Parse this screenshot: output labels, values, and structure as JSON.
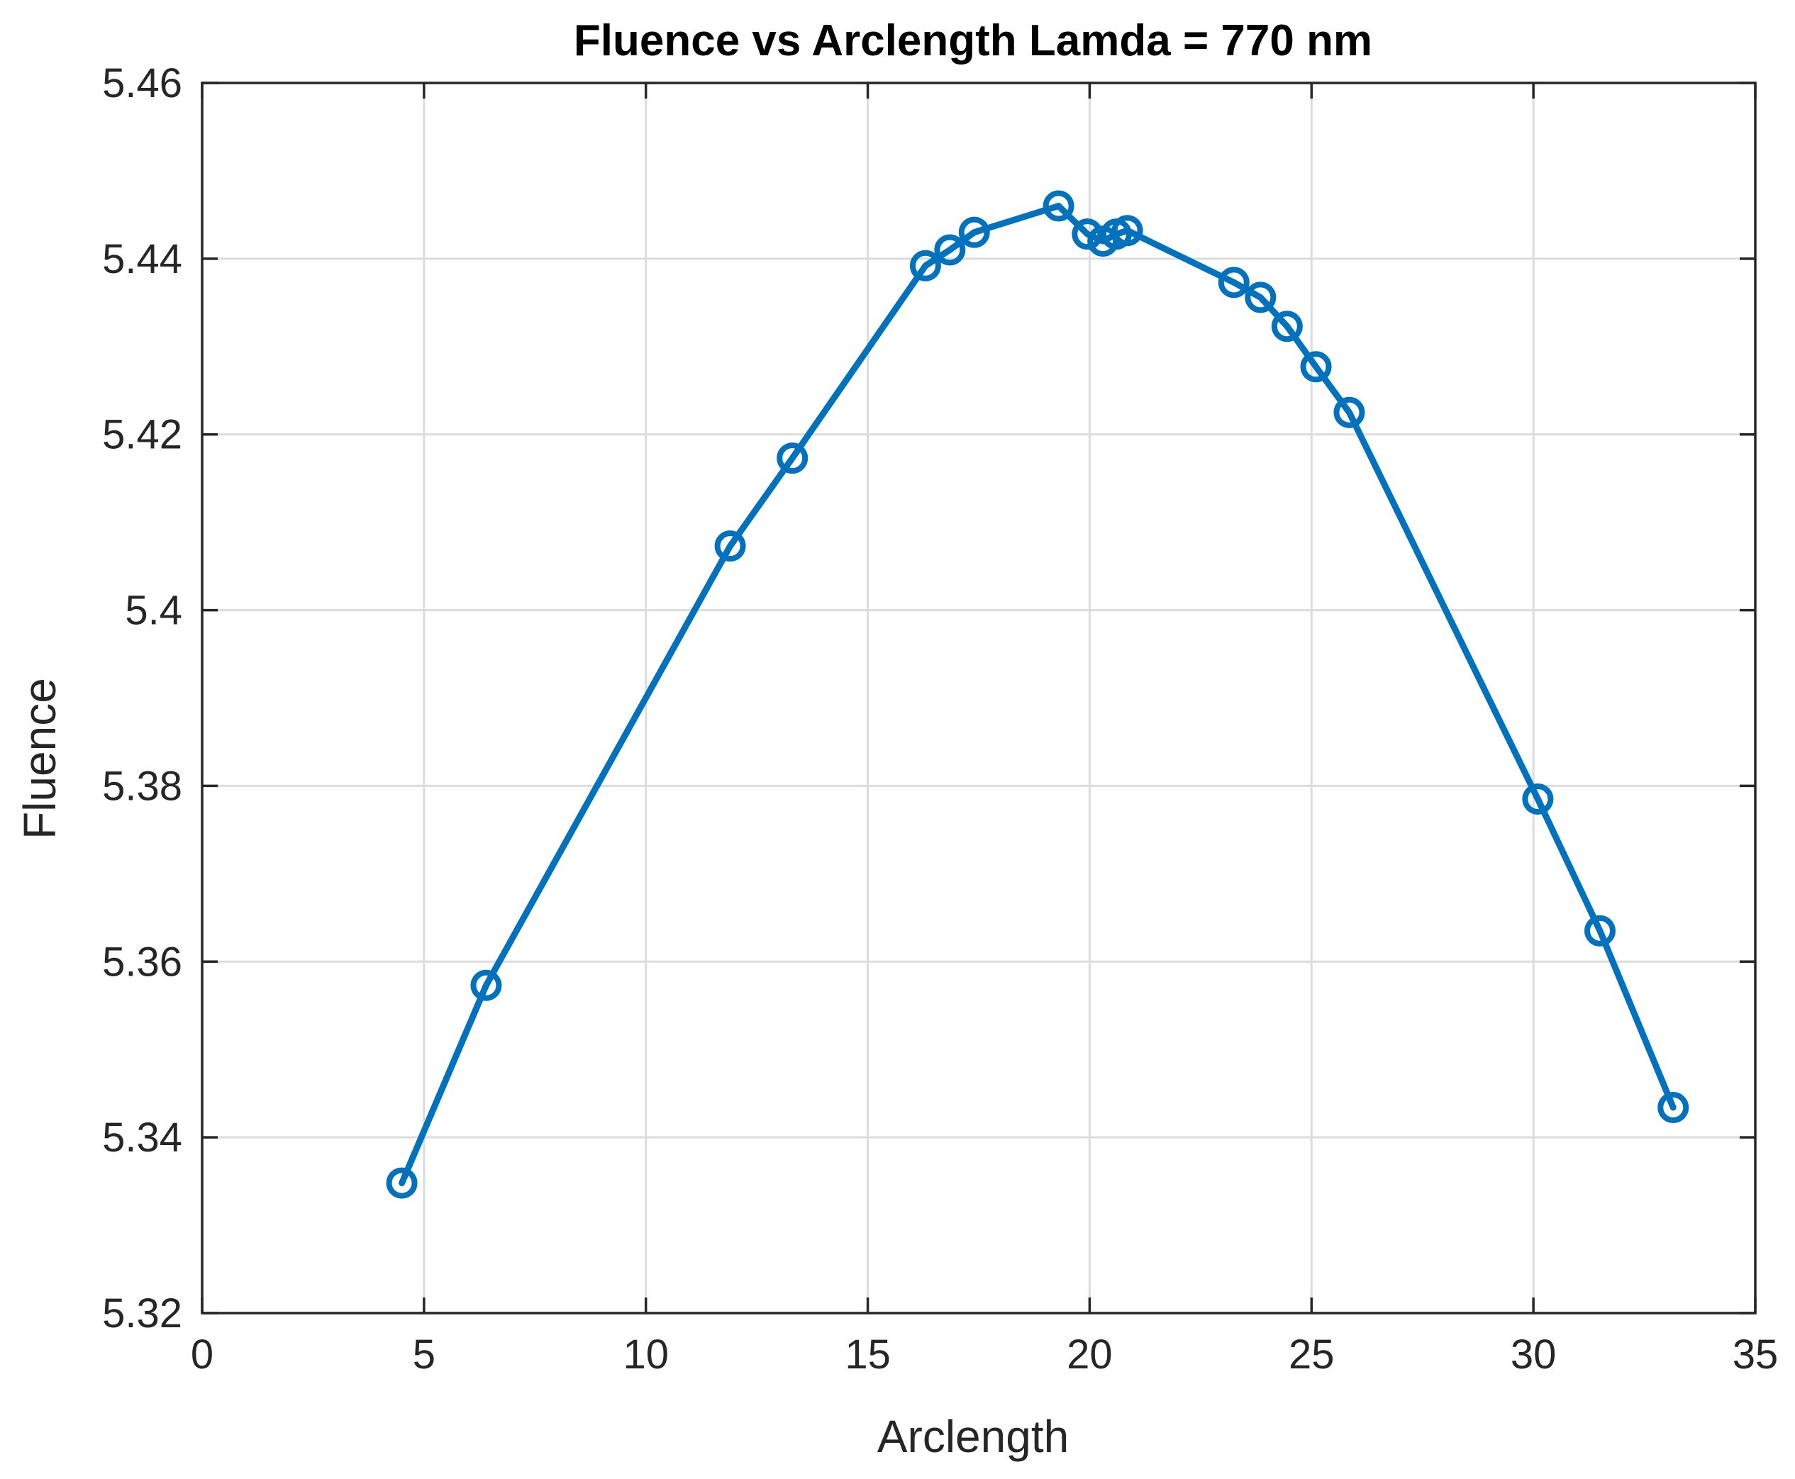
{
  "chart_data": {
    "type": "line",
    "title": "Fluence vs Arclength Lamda = 770 nm",
    "xlabel": "Arclength",
    "ylabel": "Fluence",
    "xlim": [
      0,
      35
    ],
    "ylim": [
      5.32,
      5.46
    ],
    "xticks": [
      0,
      5,
      10,
      15,
      20,
      25,
      30,
      35
    ],
    "xtick_labels": [
      "0",
      "5",
      "10",
      "15",
      "20",
      "25",
      "30",
      "35"
    ],
    "yticks": [
      5.32,
      5.34,
      5.36,
      5.38,
      5.4,
      5.42,
      5.44,
      5.46
    ],
    "ytick_labels": [
      "5.32",
      "5.34",
      "5.36",
      "5.38",
      "5.4",
      "5.42",
      "5.44",
      "5.46"
    ],
    "grid": true,
    "marker": "circle",
    "color": "#0072BD",
    "series": [
      {
        "x": [
          4.5,
          6.4,
          11.9,
          13.3,
          16.3,
          16.85,
          17.4,
          19.3,
          19.95,
          20.3,
          20.6,
          20.85,
          23.25,
          23.85,
          24.45,
          25.1,
          25.85,
          30.1,
          31.5,
          33.15
        ],
        "y": [
          5.3348,
          5.3573,
          5.4073,
          5.4173,
          5.4392,
          5.441,
          5.443,
          5.446,
          5.4428,
          5.442,
          5.4428,
          5.4432,
          5.4373,
          5.4356,
          5.4323,
          5.4277,
          5.4225,
          5.3785,
          5.3635,
          5.3434
        ]
      }
    ]
  }
}
